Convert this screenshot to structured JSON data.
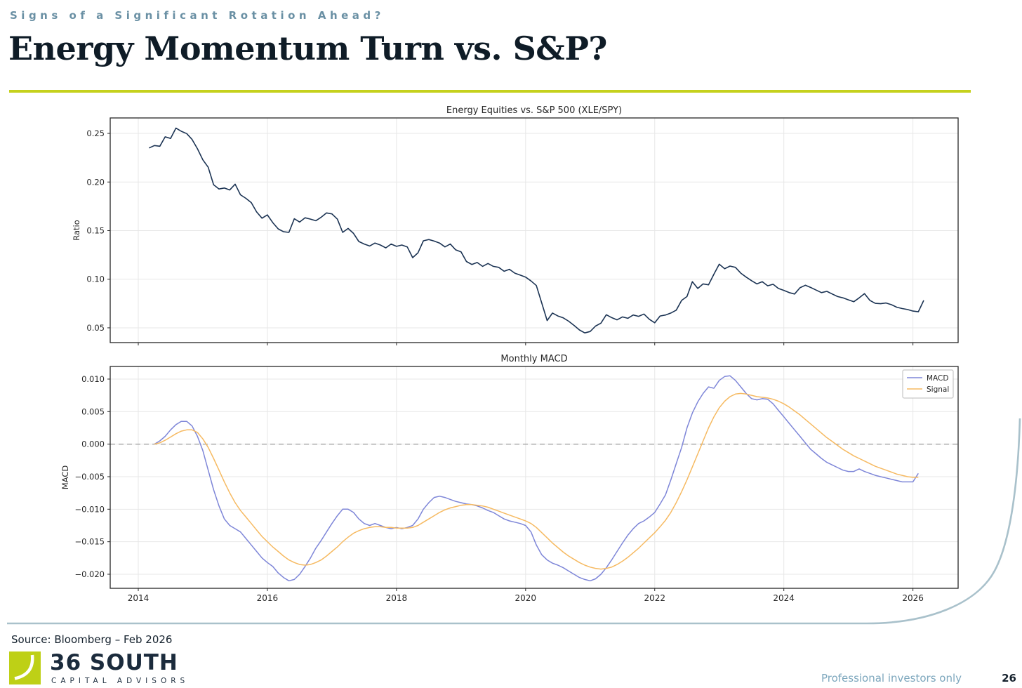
{
  "header": {
    "eyebrow": "Signs of a Significant Rotation Ahead?",
    "title": "Energy Momentum Turn vs. S&P?"
  },
  "footer": {
    "source": "Source: Bloomberg – Feb 2026",
    "disclaimer": "Professional investors only",
    "page_number": "26",
    "logo": {
      "name": "36 SOUTH",
      "subtitle": "CAPITAL ADVISORS"
    }
  },
  "colors": {
    "eyebrow": "#6a90a4",
    "title": "#0f1c27",
    "rule": "#c5d11d",
    "ratio_line": "#1b3353",
    "macd_line": "#7e86d8",
    "signal_line": "#f6ba62",
    "zero_line": "#9a9a9a",
    "grid": "#e7e7e7",
    "frame": "#262626",
    "swoosh": "#a9c1cb",
    "logo_green": "#bed016"
  },
  "chart_data": [
    {
      "type": "line",
      "title": "Energy Equities vs. S&P 500 (XLE/SPY)",
      "xlabel": "",
      "ylabel": "Ratio",
      "xlim": [
        2013.565,
        2026.7
      ],
      "ylim": [
        0.0348,
        0.2659
      ],
      "xticks": [
        2014,
        2016,
        2018,
        2020,
        2022,
        2024,
        2026
      ],
      "show_x_labels": false,
      "yticks": [
        0.05,
        0.1,
        0.15,
        0.2,
        0.25
      ],
      "ytick_decimals": 2,
      "grid": true,
      "zero_line": false,
      "legend": false,
      "series": [
        {
          "name": "XLE/SPY",
          "color": "#1b3353",
          "x_start": 2014.1667,
          "x_step": 0.0833333,
          "y": [
            0.235,
            0.2375,
            0.2368,
            0.2465,
            0.2448,
            0.2555,
            0.2522,
            0.2498,
            0.2438,
            0.2342,
            0.2228,
            0.2152,
            0.1972,
            0.1928,
            0.1938,
            0.1918,
            0.1978,
            0.1868,
            0.1832,
            0.1788,
            0.1692,
            0.1628,
            0.1662,
            0.1582,
            0.1518,
            0.1488,
            0.1482,
            0.1622,
            0.1588,
            0.1632,
            0.1618,
            0.1602,
            0.1638,
            0.1682,
            0.1672,
            0.1618,
            0.1482,
            0.1522,
            0.1472,
            0.1388,
            0.1362,
            0.1342,
            0.1372,
            0.1352,
            0.1322,
            0.1362,
            0.1338,
            0.1352,
            0.1332,
            0.1222,
            0.1272,
            0.1395,
            0.1408,
            0.1392,
            0.1372,
            0.1332,
            0.1362,
            0.1302,
            0.1282,
            0.1182,
            0.1152,
            0.1172,
            0.1132,
            0.1162,
            0.1132,
            0.1122,
            0.1082,
            0.1102,
            0.1062,
            0.1042,
            0.1022,
            0.0982,
            0.0935,
            0.0755,
            0.0575,
            0.0652,
            0.0622,
            0.0602,
            0.0568,
            0.0525,
            0.0478,
            0.0448,
            0.0462,
            0.0518,
            0.0548,
            0.0635,
            0.0605,
            0.0582,
            0.0612,
            0.0598,
            0.0632,
            0.0618,
            0.0642,
            0.0588,
            0.0552,
            0.0622,
            0.0632,
            0.0652,
            0.0682,
            0.0782,
            0.0822,
            0.0975,
            0.0905,
            0.0952,
            0.0942,
            0.1052,
            0.1155,
            0.1108,
            0.1135,
            0.1122,
            0.1062,
            0.1022,
            0.0985,
            0.0952,
            0.0975,
            0.0932,
            0.0948,
            0.0905,
            0.0885,
            0.0862,
            0.0848,
            0.0912,
            0.0938,
            0.0915,
            0.0888,
            0.0862,
            0.0875,
            0.0848,
            0.0822,
            0.0808,
            0.0788,
            0.0768,
            0.0808,
            0.0852,
            0.0782,
            0.0752,
            0.0748,
            0.0755,
            0.0738,
            0.0712,
            0.0698,
            0.0688,
            0.0672,
            0.0665,
            0.0782
          ]
        }
      ]
    },
    {
      "type": "line",
      "title": "Monthly MACD",
      "xlabel": "",
      "ylabel": "MACD",
      "xlim": [
        2013.565,
        2026.7
      ],
      "ylim": [
        -0.02216,
        0.01194
      ],
      "xticks": [
        2014,
        2016,
        2018,
        2020,
        2022,
        2024,
        2026
      ],
      "show_x_labels": true,
      "yticks": [
        0.01,
        0.005,
        0.0,
        -0.005,
        -0.01,
        -0.015,
        -0.02
      ],
      "ytick_decimals": 3,
      "grid": true,
      "zero_line": true,
      "legend": true,
      "legend_position": "upper right",
      "series": [
        {
          "name": "MACD",
          "color": "#7e86d8",
          "x_start": 2014.25,
          "x_step": 0.0833333,
          "y": [
            0.0,
            0.0005,
            0.0012,
            0.0022,
            0.003,
            0.0035,
            0.0035,
            0.0028,
            0.0012,
            -0.001,
            -0.004,
            -0.007,
            -0.0095,
            -0.0115,
            -0.0125,
            -0.013,
            -0.0135,
            -0.0145,
            -0.0155,
            -0.0165,
            -0.0175,
            -0.0182,
            -0.0188,
            -0.0198,
            -0.0205,
            -0.021,
            -0.0208,
            -0.02,
            -0.0188,
            -0.0175,
            -0.016,
            -0.0148,
            -0.0135,
            -0.0122,
            -0.011,
            -0.01,
            -0.01,
            -0.0105,
            -0.0115,
            -0.0122,
            -0.0125,
            -0.0122,
            -0.0125,
            -0.0128,
            -0.013,
            -0.0128,
            -0.013,
            -0.0128,
            -0.0125,
            -0.0115,
            -0.01,
            -0.009,
            -0.0082,
            -0.008,
            -0.0082,
            -0.0085,
            -0.0088,
            -0.009,
            -0.0092,
            -0.0093,
            -0.0095,
            -0.0098,
            -0.0102,
            -0.0105,
            -0.011,
            -0.0115,
            -0.0118,
            -0.012,
            -0.0122,
            -0.0125,
            -0.0135,
            -0.0155,
            -0.017,
            -0.0178,
            -0.0183,
            -0.0186,
            -0.019,
            -0.0195,
            -0.02,
            -0.0205,
            -0.0208,
            -0.021,
            -0.0207,
            -0.02,
            -0.019,
            -0.0178,
            -0.0165,
            -0.0152,
            -0.014,
            -0.013,
            -0.0122,
            -0.0118,
            -0.0112,
            -0.0105,
            -0.0092,
            -0.0078,
            -0.0055,
            -0.003,
            -0.0005,
            0.0025,
            0.0048,
            0.0065,
            0.0078,
            0.0088,
            0.0086,
            0.0098,
            0.0104,
            0.0105,
            0.0098,
            0.0088,
            0.0078,
            0.007,
            0.0068,
            0.007,
            0.0069,
            0.0062,
            0.0052,
            0.0042,
            0.0032,
            0.0022,
            0.0012,
            0.0002,
            -0.0008,
            -0.0015,
            -0.0022,
            -0.0028,
            -0.0032,
            -0.0036,
            -0.004,
            -0.0042,
            -0.0042,
            -0.0038,
            -0.0042,
            -0.0045,
            -0.0048,
            -0.005,
            -0.0052,
            -0.0054,
            -0.0056,
            -0.0058,
            -0.0058,
            -0.0058,
            -0.0045
          ]
        },
        {
          "name": "Signal",
          "color": "#f6ba62",
          "x_start": 2014.25,
          "x_step": 0.0833333,
          "y": [
            0.0,
            0.0002,
            0.0006,
            0.0011,
            0.0016,
            0.002,
            0.0022,
            0.0022,
            0.0018,
            0.0008,
            -0.0005,
            -0.0022,
            -0.004,
            -0.0058,
            -0.0075,
            -0.009,
            -0.0102,
            -0.0112,
            -0.0122,
            -0.0132,
            -0.0142,
            -0.015,
            -0.0158,
            -0.0165,
            -0.0172,
            -0.0178,
            -0.0182,
            -0.0185,
            -0.0186,
            -0.0185,
            -0.0182,
            -0.0178,
            -0.0172,
            -0.0165,
            -0.0158,
            -0.015,
            -0.0143,
            -0.0137,
            -0.0133,
            -0.013,
            -0.0128,
            -0.0127,
            -0.0127,
            -0.0128,
            -0.0128,
            -0.0129,
            -0.0129,
            -0.0129,
            -0.0128,
            -0.0125,
            -0.012,
            -0.0115,
            -0.011,
            -0.0105,
            -0.0101,
            -0.0098,
            -0.0096,
            -0.0094,
            -0.0093,
            -0.0093,
            -0.0094,
            -0.0095,
            -0.0097,
            -0.01,
            -0.0103,
            -0.0106,
            -0.0109,
            -0.0112,
            -0.0115,
            -0.0118,
            -0.0122,
            -0.0128,
            -0.0136,
            -0.0144,
            -0.0152,
            -0.0159,
            -0.0166,
            -0.0172,
            -0.0177,
            -0.0182,
            -0.0186,
            -0.0189,
            -0.0191,
            -0.0192,
            -0.0191,
            -0.0189,
            -0.0185,
            -0.018,
            -0.0174,
            -0.0167,
            -0.016,
            -0.0152,
            -0.0144,
            -0.0136,
            -0.0127,
            -0.0117,
            -0.0105,
            -0.009,
            -0.0073,
            -0.0055,
            -0.0035,
            -0.0015,
            0.0005,
            0.0025,
            0.0042,
            0.0056,
            0.0066,
            0.0073,
            0.0077,
            0.0078,
            0.0077,
            0.0075,
            0.0073,
            0.0072,
            0.0071,
            0.0069,
            0.0066,
            0.0062,
            0.0057,
            0.0051,
            0.0045,
            0.0038,
            0.0031,
            0.0024,
            0.0017,
            0.001,
            0.0004,
            -0.0002,
            -0.0008,
            -0.0013,
            -0.0018,
            -0.0022,
            -0.0026,
            -0.003,
            -0.0034,
            -0.0037,
            -0.004,
            -0.0043,
            -0.0046,
            -0.0048,
            -0.005,
            -0.0051,
            -0.0051
          ]
        }
      ]
    }
  ]
}
